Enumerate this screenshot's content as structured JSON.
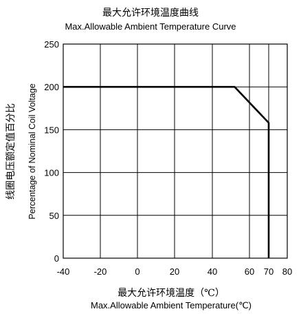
{
  "chart_data": {
    "type": "line",
    "title": "最大允许环境温度曲线",
    "subtitle": "Max.Allowable Ambient Temperature Curve",
    "xlabel_cn": "最大允许环境温度（℃）",
    "xlabel": "Max.Allowable Ambient Temperature(℃)",
    "ylabel_cn": "线圈电压额定值百分比",
    "ylabel": "Percentage of Nominal Coil Voltage",
    "x_ticks": [
      -40,
      -20,
      0,
      20,
      40,
      60,
      70,
      80
    ],
    "y_ticks": [
      0,
      50,
      100,
      150,
      200,
      250
    ],
    "xlim": [
      -40,
      80
    ],
    "ylim": [
      0,
      250
    ],
    "grid": true,
    "series": [
      {
        "x": [
          -40,
          52,
          70,
          70
        ],
        "y": [
          200,
          200,
          158,
          0
        ],
        "color": "#000000"
      }
    ]
  }
}
